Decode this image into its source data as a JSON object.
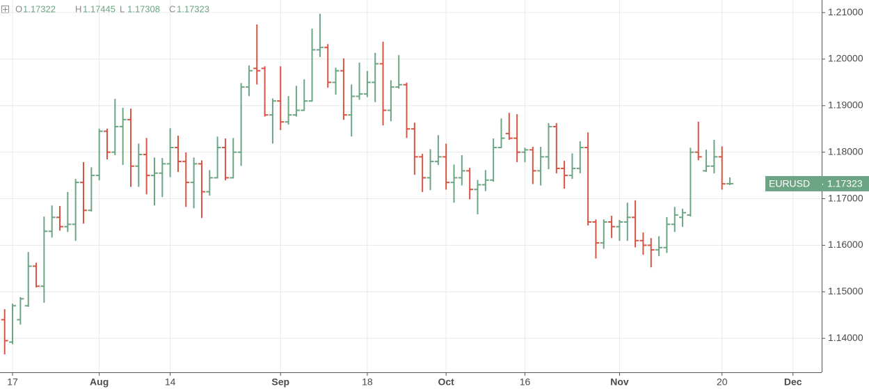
{
  "chart_data": {
    "type": "ohlc",
    "symbol": "EURUSD",
    "legend_labels": [
      "O",
      "H",
      "L",
      "C"
    ],
    "up_color": "#6ba583",
    "down_color": "#d75442",
    "grid": true,
    "ylim": [
      1.1327,
      1.2127
    ],
    "yticks": [
      {
        "value": 1.14,
        "label": "1.14000"
      },
      {
        "value": 1.15,
        "label": "1.15000"
      },
      {
        "value": 1.16,
        "label": "1.16000"
      },
      {
        "value": 1.17,
        "label": "1.17000"
      },
      {
        "value": 1.18,
        "label": "1.18000"
      },
      {
        "value": 1.19,
        "label": "1.19000"
      },
      {
        "value": 1.2,
        "label": "1.20000"
      },
      {
        "value": 1.21,
        "label": "1.21000"
      }
    ],
    "categories": [
      null,
      "17",
      null,
      null,
      null,
      null,
      null,
      null,
      null,
      null,
      null,
      null,
      "Aug",
      null,
      null,
      null,
      null,
      null,
      null,
      null,
      null,
      "14",
      null,
      null,
      null,
      null,
      null,
      null,
      null,
      null,
      null,
      null,
      null,
      null,
      null,
      "Sep",
      null,
      null,
      null,
      null,
      null,
      null,
      null,
      null,
      null,
      null,
      "18",
      null,
      null,
      null,
      null,
      null,
      null,
      null,
      null,
      null,
      "Oct",
      null,
      null,
      null,
      null,
      null,
      null,
      null,
      null,
      null,
      "16",
      null,
      null,
      null,
      null,
      null,
      null,
      null,
      null,
      null,
      null,
      null,
      "Nov",
      null,
      null,
      null,
      null,
      null,
      null,
      null,
      null,
      null,
      null,
      null,
      null,
      "20",
      null,
      null,
      null,
      null,
      null,
      null,
      null,
      null,
      "Dec"
    ],
    "open": [
      1.144,
      1.1392,
      1.144,
      1.147,
      1.1555,
      1.1512,
      1.163,
      1.166,
      1.164,
      1.1645,
      1.1735,
      1.1675,
      1.175,
      1.1845,
      1.18,
      1.1855,
      1.187,
      1.177,
      1.1795,
      1.175,
      1.1755,
      1.1775,
      1.181,
      1.178,
      1.1735,
      1.1775,
      1.1715,
      1.1745,
      1.181,
      1.1745,
      1.18,
      1.194,
      1.198,
      1.198,
      1.188,
      1.191,
      1.1865,
      1.188,
      1.189,
      1.191,
      1.202,
      1.2025,
      1.195,
      1.1975,
      1.188,
      1.192,
      1.1925,
      1.195,
      1.199,
      1.189,
      1.194,
      1.1945,
      1.185,
      1.179,
      1.1745,
      1.178,
      1.179,
      1.1735,
      1.1745,
      1.176,
      1.172,
      1.173,
      1.174,
      1.181,
      1.184,
      1.183,
      1.18,
      1.1805,
      1.176,
      1.179,
      1.1855,
      1.1765,
      1.175,
      1.1765,
      1.181,
      1.165,
      1.1605,
      1.165,
      1.164,
      1.165,
      1.166,
      1.161,
      1.16,
      1.159,
      1.1595,
      1.1645,
      1.166,
      1.1665,
      1.18,
      1.176,
      1.177,
      1.179,
      1.17322,
      null,
      null,
      null,
      null,
      null,
      null,
      null,
      null
    ],
    "high": [
      1.1461,
      1.1473,
      1.1487,
      1.1584,
      1.1561,
      1.166,
      1.1684,
      1.1683,
      1.1713,
      1.1741,
      1.1777,
      1.1766,
      1.1849,
      1.1849,
      1.1913,
      1.1894,
      1.1892,
      1.1817,
      1.1829,
      1.1787,
      1.1786,
      1.185,
      1.1834,
      1.1798,
      1.1787,
      1.1781,
      1.176,
      1.1832,
      1.1828,
      1.1829,
      1.1947,
      1.1985,
      1.2073,
      1.1983,
      1.1914,
      1.1983,
      1.1919,
      1.1941,
      1.1955,
      1.2064,
      1.2096,
      1.2031,
      1.198,
      1.2,
      1.1944,
      1.1991,
      1.1973,
      1.2012,
      1.2036,
      1.1953,
      1.2007,
      1.1948,
      1.1862,
      1.1795,
      1.1805,
      1.1835,
      1.1817,
      1.1772,
      1.1792,
      1.1765,
      1.1739,
      1.176,
      1.1828,
      1.1871,
      1.1883,
      1.188,
      1.1808,
      1.181,
      1.181,
      1.1861,
      1.1861,
      1.178,
      1.1796,
      1.1822,
      1.1841,
      1.1654,
      1.1654,
      1.1662,
      1.1653,
      1.169,
      1.1695,
      1.1626,
      1.1614,
      1.1618,
      1.1659,
      1.1681,
      1.1677,
      1.1808,
      1.1864,
      1.1804,
      1.1825,
      1.1811,
      1.17445,
      null,
      null,
      null,
      null,
      null,
      null,
      null,
      null
    ],
    "low": [
      1.1367,
      1.1389,
      1.1431,
      1.1469,
      1.1511,
      1.1478,
      1.1618,
      1.1633,
      1.163,
      1.1611,
      1.1648,
      1.1674,
      1.1741,
      1.1786,
      1.1795,
      1.1774,
      1.1727,
      1.1727,
      1.1711,
      1.1687,
      1.1705,
      1.1748,
      1.1759,
      1.1684,
      1.1681,
      1.166,
      1.1708,
      1.1745,
      1.1741,
      1.1745,
      1.1772,
      1.1922,
      1.1947,
      1.1878,
      1.182,
      1.1849,
      1.1861,
      1.1878,
      1.189,
      1.191,
      1.2006,
      1.194,
      1.1925,
      1.1871,
      1.1835,
      1.1914,
      1.192,
      1.1909,
      1.1859,
      1.1868,
      1.1938,
      1.1832,
      1.1753,
      1.1716,
      1.172,
      1.1774,
      1.1721,
      1.1693,
      1.173,
      1.17,
      1.1668,
      1.1718,
      1.1738,
      1.181,
      1.1828,
      1.178,
      1.178,
      1.1733,
      1.173,
      1.1765,
      1.1756,
      1.1723,
      1.1744,
      1.1756,
      1.1644,
      1.1573,
      1.1594,
      1.1617,
      1.1611,
      1.1611,
      1.1597,
      1.1581,
      1.1554,
      1.1578,
      1.1585,
      1.163,
      1.1641,
      1.1663,
      1.1784,
      1.1759,
      1.1756,
      1.1721,
      1.17308,
      null,
      null,
      null,
      null,
      null,
      null,
      null,
      null
    ],
    "close": [
      1.1395,
      1.147,
      1.1485,
      1.1555,
      1.1512,
      1.163,
      1.166,
      1.164,
      1.1645,
      1.1735,
      1.1675,
      1.175,
      1.1845,
      1.18,
      1.1855,
      1.187,
      1.177,
      1.1795,
      1.175,
      1.1755,
      1.1775,
      1.181,
      1.178,
      1.1735,
      1.1775,
      1.1715,
      1.1745,
      1.181,
      1.1745,
      1.18,
      1.194,
      1.1975,
      1.1975,
      1.188,
      1.191,
      1.1865,
      1.188,
      1.189,
      1.191,
      1.202,
      1.2025,
      1.195,
      1.1975,
      1.188,
      1.192,
      1.1925,
      1.195,
      1.199,
      1.189,
      1.194,
      1.1945,
      1.185,
      1.179,
      1.1745,
      1.178,
      1.179,
      1.1735,
      1.1745,
      1.176,
      1.172,
      1.173,
      1.174,
      1.181,
      1.183,
      1.183,
      1.18,
      1.1805,
      1.176,
      1.179,
      1.1855,
      1.1765,
      1.175,
      1.1765,
      1.181,
      1.165,
      1.1605,
      1.165,
      1.164,
      1.165,
      1.166,
      1.161,
      1.16,
      1.159,
      1.1595,
      1.1645,
      1.1665,
      1.167,
      1.18,
      1.179,
      1.177,
      1.179,
      1.1732,
      1.17323,
      null,
      null,
      null,
      null,
      null,
      null,
      null,
      null
    ]
  }
}
